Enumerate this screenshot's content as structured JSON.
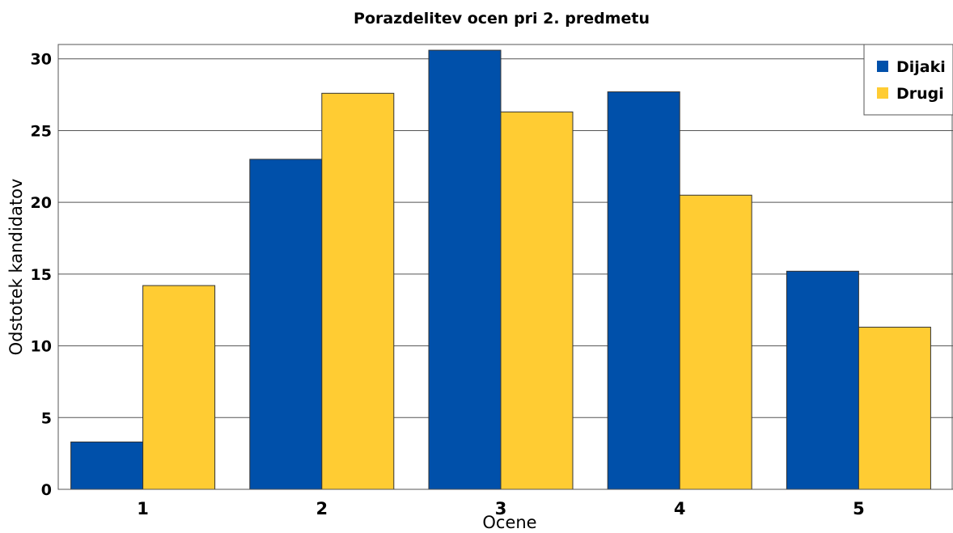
{
  "chart_data": {
    "type": "bar",
    "title": "Porazdelitev ocen pri 2. predmetu",
    "xlabel": "Ocene",
    "ylabel": "Odstotek kandidatov",
    "categories": [
      "1",
      "2",
      "3",
      "4",
      "5"
    ],
    "series": [
      {
        "name": "Dijaki",
        "color": "#0050aa",
        "values": [
          3.3,
          23.0,
          30.6,
          27.7,
          15.2
        ]
      },
      {
        "name": "Drugi",
        "color": "#ffcc33",
        "values": [
          14.2,
          27.6,
          26.3,
          20.5,
          11.3
        ]
      }
    ],
    "ylim": [
      0,
      31
    ],
    "yticks": [
      "0",
      "5",
      "10",
      "15",
      "20",
      "25",
      "30"
    ],
    "grid": true,
    "legend": "top-right"
  }
}
